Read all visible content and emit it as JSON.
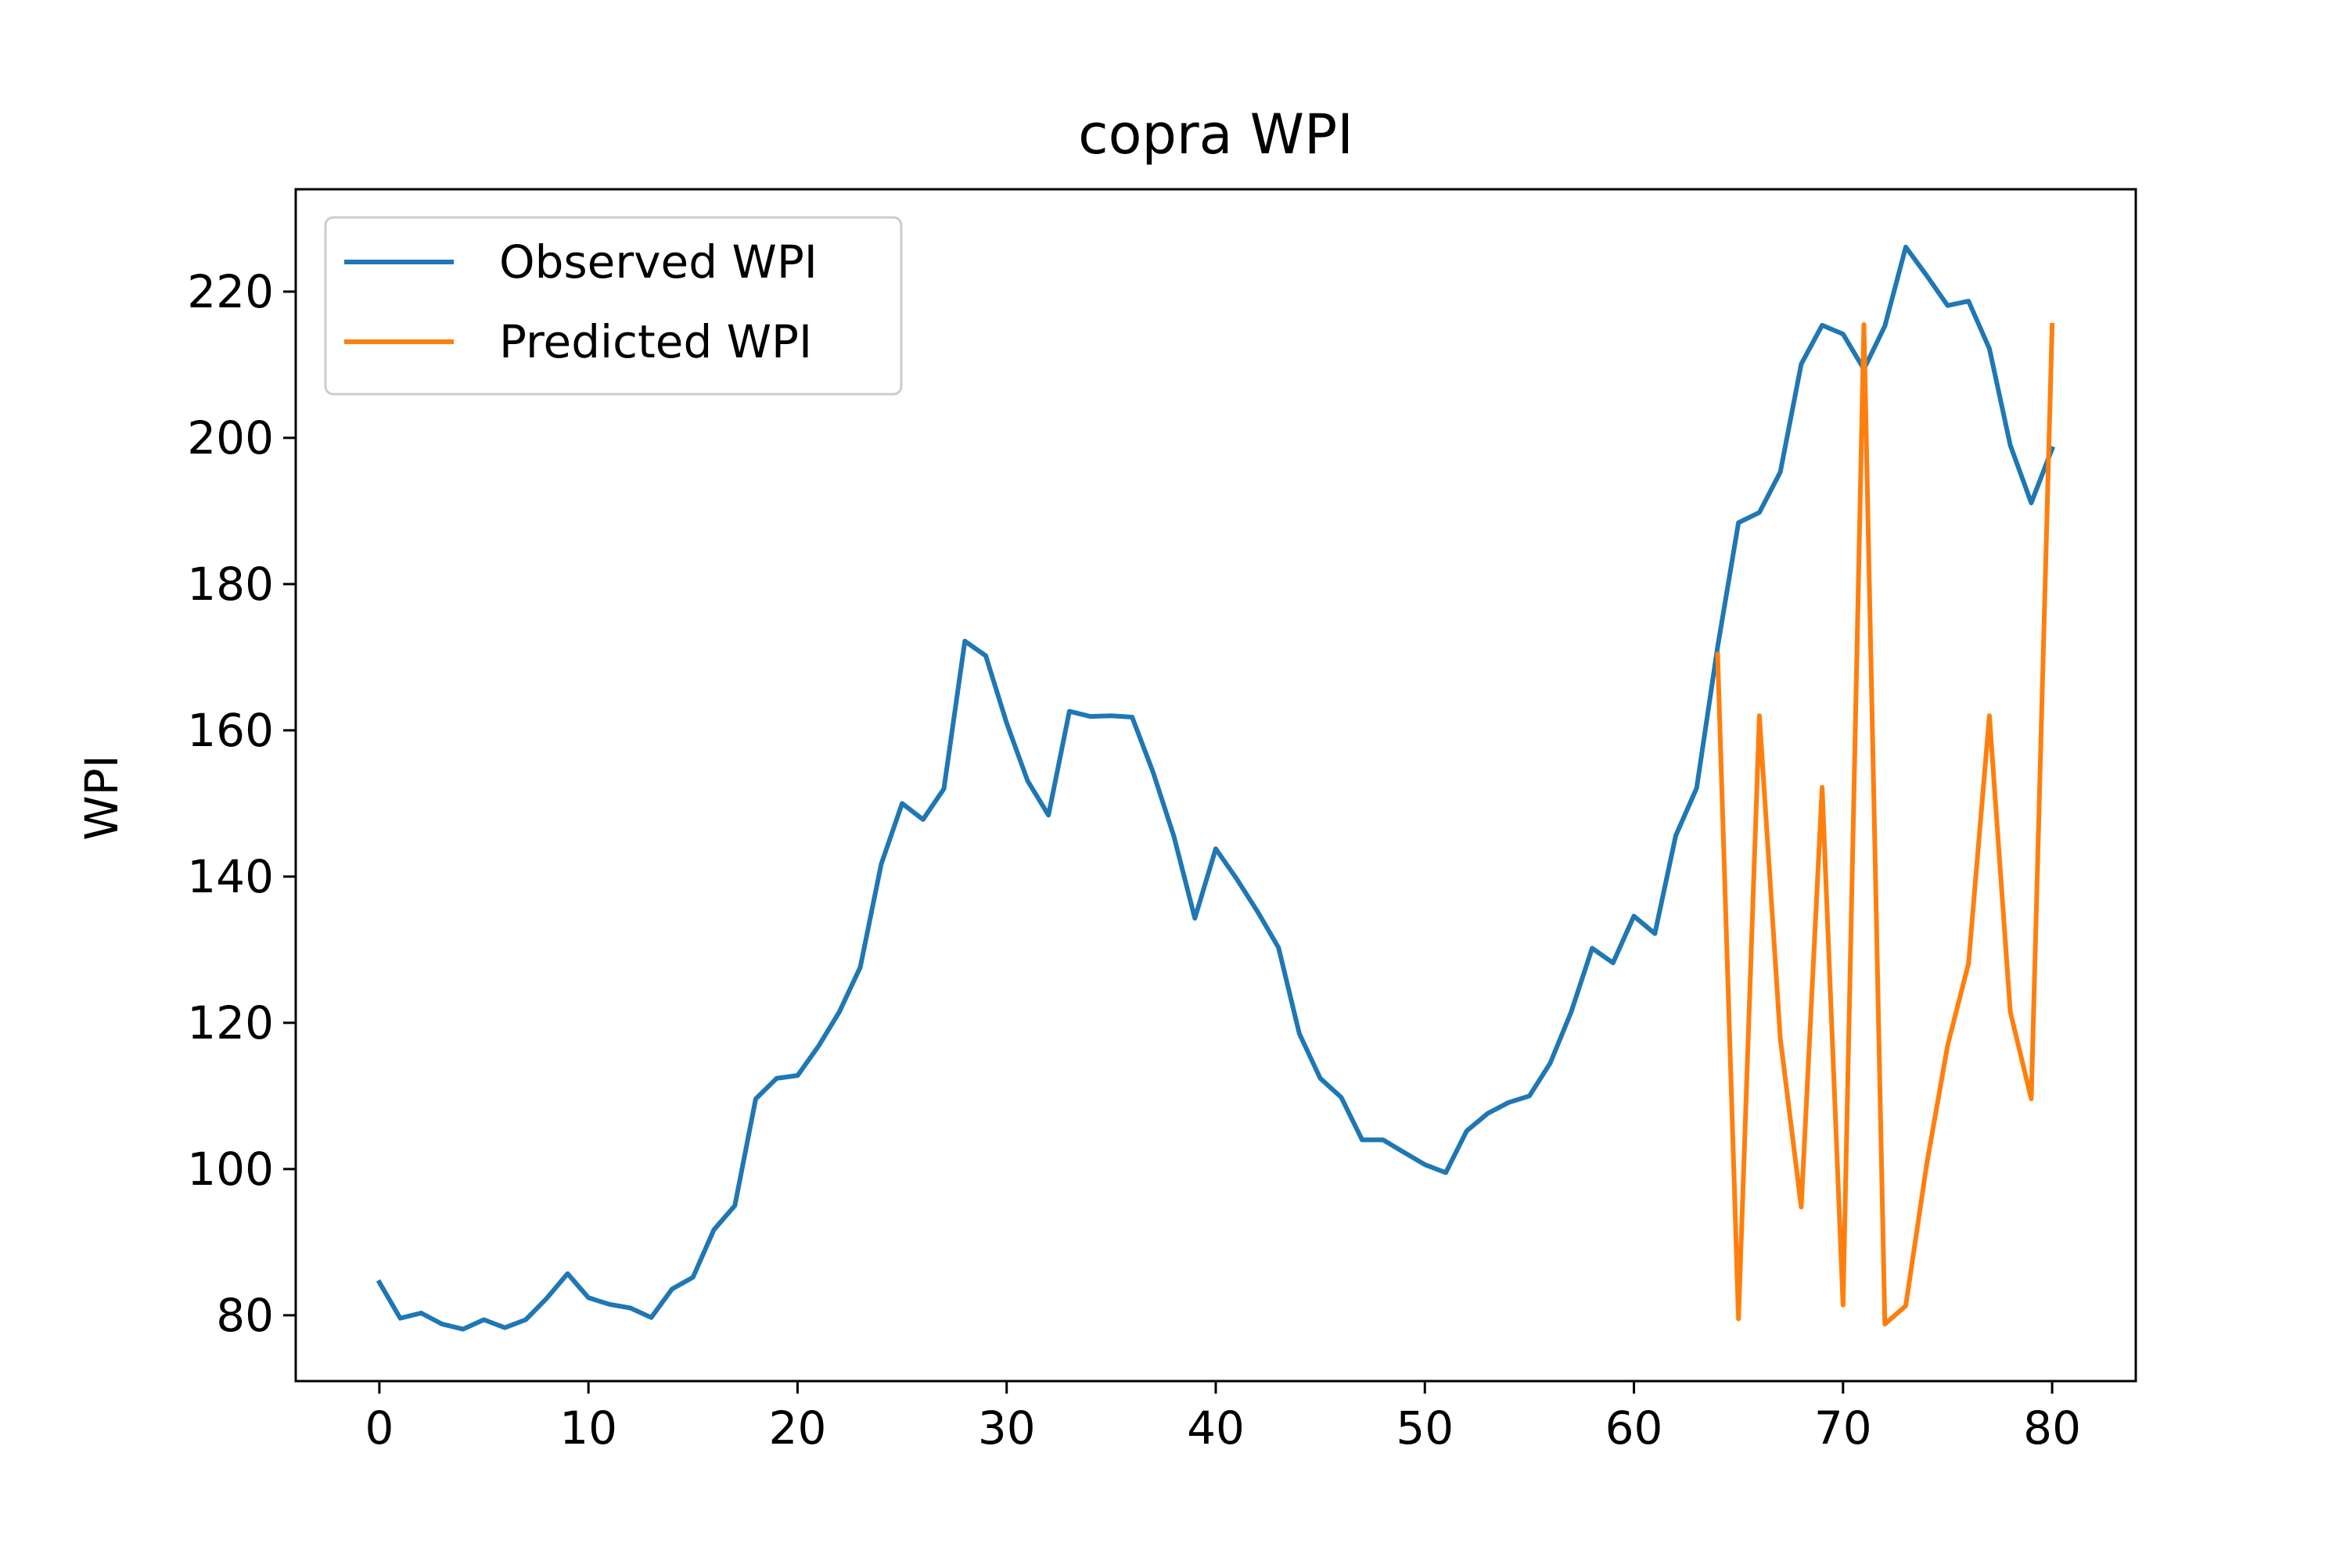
{
  "chart_data": {
    "type": "line",
    "title": "copra WPI",
    "xlabel": "",
    "ylabel": "WPI",
    "xlim": [
      -4,
      84
    ],
    "ylim": [
      71,
      234
    ],
    "xticks": [
      0,
      10,
      20,
      30,
      40,
      50,
      60,
      70,
      80
    ],
    "yticks": [
      80,
      100,
      120,
      140,
      160,
      180,
      200,
      220
    ],
    "grid": false,
    "legend_position": "upper-left",
    "series": [
      {
        "name": "Observed WPI",
        "color": "#1f77b4",
        "x": [
          0,
          1,
          2,
          3,
          4,
          5,
          6,
          7,
          8,
          9,
          10,
          11,
          12,
          13,
          14,
          15,
          16,
          17,
          18,
          19,
          20,
          21,
          22,
          23,
          24,
          25,
          26,
          27,
          28,
          29,
          30,
          31,
          32,
          33,
          34,
          35,
          36,
          37,
          38,
          39,
          40,
          41,
          42,
          43,
          44,
          45,
          46,
          47,
          48,
          49,
          50,
          51,
          52,
          53,
          54,
          55,
          56,
          57,
          58,
          59,
          60,
          61,
          62,
          63,
          64,
          65,
          66,
          67,
          68,
          69,
          70,
          71,
          72,
          73,
          74,
          75,
          76,
          77,
          78,
          79,
          80
        ],
        "values": [
          84.5,
          79.6,
          80.3,
          78.8,
          78.1,
          79.4,
          78.3,
          79.4,
          82.3,
          85.7,
          82.4,
          81.5,
          81.0,
          79.7,
          83.6,
          85.2,
          91.7,
          95.0,
          109.6,
          112.4,
          112.8,
          116.8,
          121.5,
          127.6,
          141.7,
          150.0,
          147.8,
          152.0,
          172.2,
          170.2,
          161.0,
          153.1,
          148.4,
          162.6,
          161.9,
          162.0,
          161.8,
          154.3,
          145.5,
          134.3,
          143.8,
          139.7,
          135.2,
          130.3,
          118.5,
          112.4,
          109.8,
          104.0,
          104.0,
          102.3,
          100.6,
          99.5,
          105.2,
          107.6,
          109.1,
          110.0,
          114.5,
          121.5,
          130.2,
          128.2,
          134.6,
          132.2,
          145.6,
          152.1,
          171.4,
          188.4,
          189.8,
          195.3,
          210.1,
          215.4,
          214.2,
          209.4,
          215.3,
          226.1,
          222.2,
          218.1,
          218.7,
          212.2,
          199.0,
          191.1,
          198.5
        ]
      },
      {
        "name": "Predicted WPI",
        "color": "#ff7f0e",
        "x": [
          64,
          65,
          66,
          67,
          68,
          69,
          70,
          71,
          72,
          73,
          74,
          75,
          76,
          77,
          78,
          79,
          80
        ],
        "values": [
          170.4,
          79.5,
          162.0,
          117.9,
          94.8,
          152.2,
          81.4,
          215.5,
          78.8,
          81.3,
          100.6,
          116.9,
          128.1,
          162.0,
          121.5,
          109.6,
          215.4
        ]
      }
    ]
  }
}
